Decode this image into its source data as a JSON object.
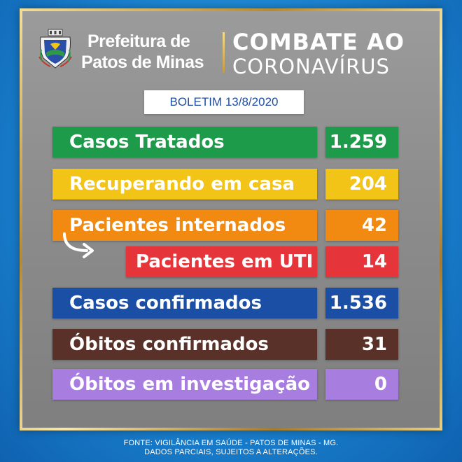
{
  "header": {
    "crest_icon": "city-coat-of-arms-icon",
    "org_line1": "Prefeitura de",
    "org_line2": "Patos de Minas",
    "campaign_line1": "COMBATE AO",
    "campaign_line2": "CORONAVÍRUS"
  },
  "bulletin": "BOLETIM 13/8/2020",
  "rows": [
    {
      "label": "Casos Tratados",
      "value": "1.259",
      "color": "#1e9a4b"
    },
    {
      "label": "Recuperando em casa",
      "value": "204",
      "color": "#f2c418"
    },
    {
      "label": "Pacientes internados",
      "value": "42",
      "color": "#f28a12"
    },
    {
      "label": "Pacientes em UTI",
      "value": "14",
      "color": "#e5353b"
    },
    {
      "label": "Casos confirmados",
      "value": "1.536",
      "color": "#1b4fa6"
    },
    {
      "label": "Óbitos confirmados",
      "value": "31",
      "color": "#5a3128"
    },
    {
      "label": "Óbitos em investigação",
      "value": "0",
      "color": "#a77ee0"
    }
  ],
  "arrow_icon": "curved-arrow-right-icon",
  "footer": {
    "line1": "FONTE: VIGILÂNCIA EM SAÚDE - PATOS DE MINAS - MG.",
    "line2": "DADOS PARCIAIS, SUJEITOS A ALTERAÇÕES."
  }
}
